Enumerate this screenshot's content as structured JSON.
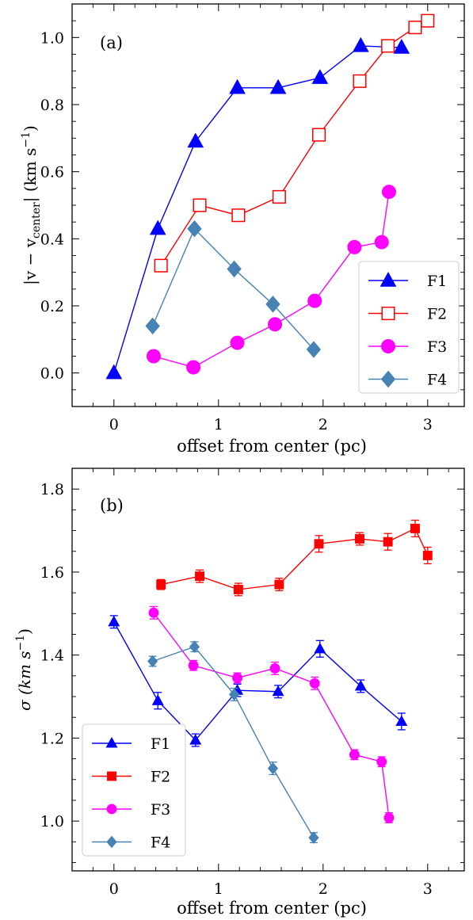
{
  "chart_data": [
    {
      "panel_label": "(a)",
      "type": "line",
      "xlabel": "offset from center (pc)",
      "ylabel_main": "|v − v",
      "ylabel_sub": "center",
      "ylabel_tail": "| (km s",
      "ylabel_exp": "−1",
      "ylabel_close": ")",
      "xlim": [
        -0.4,
        3.35
      ],
      "ylim": [
        -0.1,
        1.1
      ],
      "xticks": [
        0,
        1,
        2,
        3
      ],
      "xtick_labels": [
        "0",
        "1",
        "2",
        "3"
      ],
      "yticks": [
        0.0,
        0.2,
        0.4,
        0.6,
        0.8,
        1.0
      ],
      "ytick_labels": [
        "0.0",
        "0.2",
        "0.4",
        "0.6",
        "0.8",
        "1.0"
      ],
      "legend_position": "lower-right",
      "series": [
        {
          "name": "F1",
          "color": "#0000ff",
          "marker": "triangle",
          "filled": true,
          "x": [
            0.0,
            0.42,
            0.78,
            1.18,
            1.57,
            1.97,
            2.36,
            2.75
          ],
          "y": [
            0.0,
            0.43,
            0.69,
            0.85,
            0.85,
            0.88,
            0.975,
            0.97
          ]
        },
        {
          "name": "F2",
          "color": "#ff0000",
          "marker": "square",
          "filled": false,
          "x": [
            0.45,
            0.82,
            1.19,
            1.58,
            1.96,
            2.35,
            2.62,
            2.88,
            3.0
          ],
          "y": [
            0.32,
            0.5,
            0.47,
            0.525,
            0.71,
            0.87,
            0.975,
            1.03,
            1.05
          ]
        },
        {
          "name": "F3",
          "color": "#ff00ff",
          "marker": "circle",
          "filled": true,
          "x": [
            0.38,
            0.76,
            1.18,
            1.54,
            1.92,
            2.3,
            2.56,
            2.63
          ],
          "y": [
            0.05,
            0.017,
            0.09,
            0.145,
            0.215,
            0.375,
            0.39,
            0.54
          ]
        },
        {
          "name": "F4",
          "color": "#4682b4",
          "marker": "diamond",
          "filled": true,
          "x": [
            0.37,
            0.77,
            1.15,
            1.52,
            1.91
          ],
          "y": [
            0.14,
            0.43,
            0.31,
            0.205,
            0.07
          ]
        }
      ]
    },
    {
      "panel_label": "(b)",
      "type": "line",
      "xlabel": "offset from center (pc)",
      "ylabel_main": "σ (km s",
      "ylabel_exp": "−1",
      "ylabel_close": ")",
      "xlim": [
        -0.4,
        3.35
      ],
      "ylim": [
        0.88,
        1.85
      ],
      "xticks": [
        0,
        1,
        2,
        3
      ],
      "xtick_labels": [
        "0",
        "1",
        "2",
        "3"
      ],
      "yticks": [
        1.0,
        1.2,
        1.4,
        1.6,
        1.8
      ],
      "ytick_labels": [
        "1.0",
        "1.2",
        "1.4",
        "1.6",
        "1.8"
      ],
      "legend_position": "lower-left",
      "series": [
        {
          "name": "F1",
          "color": "#0000ff",
          "marker": "triangle",
          "filled": true,
          "x": [
            0.0,
            0.42,
            0.78,
            1.18,
            1.57,
            1.97,
            2.36,
            2.75
          ],
          "y": [
            1.48,
            1.29,
            1.195,
            1.315,
            1.312,
            1.415,
            1.325,
            1.24
          ],
          "err": [
            0.015,
            0.02,
            0.015,
            0.015,
            0.015,
            0.02,
            0.015,
            0.02
          ]
        },
        {
          "name": "F2",
          "color": "#ff0000",
          "marker": "square",
          "filled": true,
          "x": [
            0.45,
            0.82,
            1.19,
            1.58,
            1.96,
            2.35,
            2.62,
            2.88,
            3.0
          ],
          "y": [
            1.57,
            1.59,
            1.558,
            1.57,
            1.668,
            1.68,
            1.673,
            1.705,
            1.64
          ],
          "err": [
            0.012,
            0.015,
            0.015,
            0.015,
            0.02,
            0.015,
            0.02,
            0.02,
            0.02
          ]
        },
        {
          "name": "F3",
          "color": "#ff00ff",
          "marker": "circle",
          "filled": true,
          "x": [
            0.38,
            0.76,
            1.18,
            1.54,
            1.92,
            2.3,
            2.56,
            2.63
          ],
          "y": [
            1.502,
            1.375,
            1.345,
            1.368,
            1.332,
            1.16,
            1.143,
            1.008
          ],
          "err": [
            0.015,
            0.012,
            0.012,
            0.015,
            0.015,
            0.012,
            0.012,
            0.012
          ]
        },
        {
          "name": "F4",
          "color": "#4682b4",
          "marker": "diamond",
          "filled": true,
          "x": [
            0.37,
            0.77,
            1.15,
            1.52,
            1.91
          ],
          "y": [
            1.385,
            1.42,
            1.305,
            1.127,
            0.96
          ],
          "err": [
            0.012,
            0.012,
            0.015,
            0.015,
            0.012
          ]
        }
      ]
    }
  ]
}
